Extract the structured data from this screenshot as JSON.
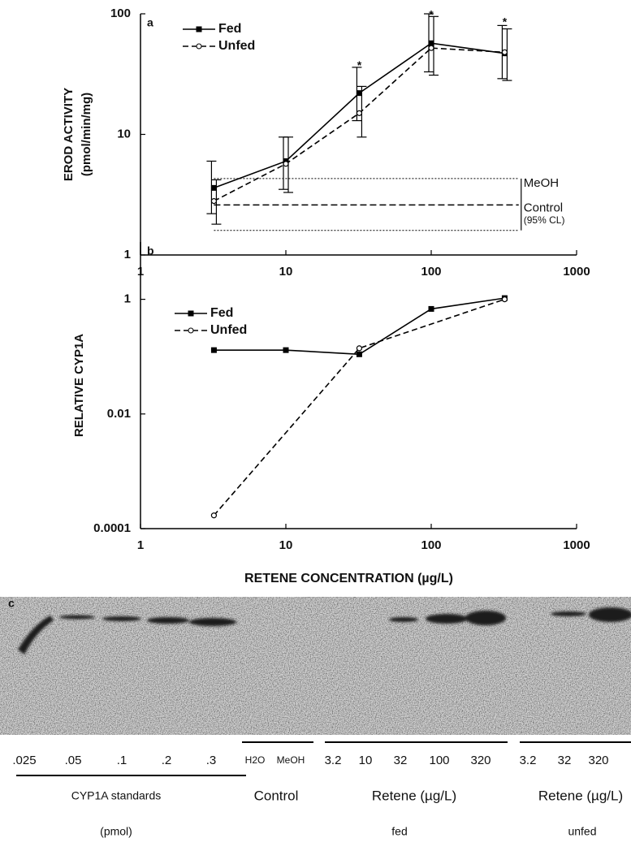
{
  "chart_data": [
    {
      "type": "line",
      "panel": "a",
      "ylabel": [
        "EROD ACTIVITY",
        "(pmol/min/mg)"
      ],
      "xscale": "log",
      "yscale": "log",
      "xlim": [
        1,
        1000
      ],
      "ylim": [
        1,
        100
      ],
      "xticks": [
        1,
        10,
        100,
        1000
      ],
      "yticks": [
        1,
        10,
        100
      ],
      "legend": "top-left",
      "series": [
        {
          "name": "Fed",
          "color": "#000000",
          "marker": "square",
          "dash": false,
          "x": [
            3.2,
            10,
            32,
            100,
            320
          ],
          "values": [
            3.6,
            6,
            22,
            57,
            47
          ],
          "lower": [
            2.2,
            3.5,
            13,
            33,
            29
          ],
          "upper": [
            6,
            9.5,
            36,
            100,
            80
          ]
        },
        {
          "name": "Unfed",
          "color": "#000000",
          "marker": "circle",
          "dash": true,
          "x": [
            3.2,
            10,
            32,
            100,
            320
          ],
          "values": [
            2.8,
            5.7,
            15,
            52,
            48
          ],
          "lower": [
            1.8,
            3.3,
            9.5,
            31,
            28
          ],
          "upper": [
            4.2,
            9.5,
            25,
            95,
            75
          ]
        }
      ],
      "control": {
        "label": [
          "MeOH",
          "Control",
          "(95% CL)"
        ],
        "mean": 2.6,
        "lower": 1.6,
        "upper": 4.3,
        "x": [
          3.2,
          400
        ]
      },
      "annotations": [
        {
          "text": "*",
          "x": 32,
          "y": 38
        },
        {
          "text": "*",
          "x": 100,
          "y": 100
        },
        {
          "text": "*",
          "x": 320,
          "y": 87
        }
      ]
    },
    {
      "type": "line",
      "panel": "b",
      "ylabel": [
        "RELATIVE CYP1A"
      ],
      "xlabel": "RETENE CONCENTRATION (µg/L)",
      "xscale": "log",
      "yscale": "log",
      "xlim": [
        1,
        1000
      ],
      "ylim": [
        0.0001,
        10
      ],
      "xticks": [
        1,
        10,
        100,
        1000
      ],
      "yticks": [
        0.0001,
        0.01,
        1
      ],
      "legend": "top-left",
      "series": [
        {
          "name": "Fed",
          "color": "#000000",
          "marker": "square",
          "dash": false,
          "x": [
            3.2,
            10,
            32,
            100,
            320
          ],
          "values": [
            0.13,
            0.13,
            0.11,
            0.68,
            1.05
          ]
        },
        {
          "name": "Unfed",
          "color": "#000000",
          "marker": "circle",
          "dash": true,
          "x": [
            3.2,
            32,
            320
          ],
          "values": [
            0.00017,
            0.14,
            1
          ]
        }
      ]
    }
  ],
  "blot": {
    "label": "c",
    "lanes": [
      ".025",
      ".05",
      ".1",
      ".2",
      ".3",
      "H2O",
      "MeOH",
      "3.2",
      "10",
      "32",
      "100",
      "320",
      "3.2",
      "32",
      "320"
    ],
    "groups": [
      {
        "name": "CYP1A standards",
        "sub": "(pmol)"
      },
      {
        "name": "Control"
      },
      {
        "name": "Retene (µg/L)",
        "sub": "fed"
      },
      {
        "name": "Retene (µg/L)",
        "sub": "unfed"
      }
    ]
  }
}
